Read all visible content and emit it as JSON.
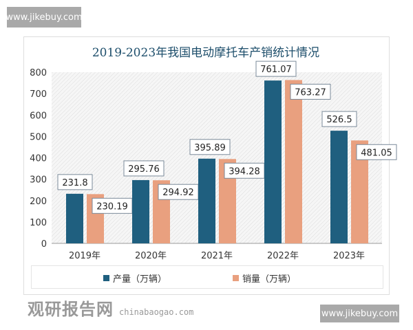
{
  "watermark_top": "www.jikebuy.com",
  "watermark_bottom": "www.jikebuy.com",
  "logo": {
    "name": "观研报告网",
    "url": "chinabaogao.com"
  },
  "chart_data": {
    "type": "bar",
    "title": "2019-2023年我国电动摩托车产销统计情况",
    "categories": [
      "2019年",
      "2020年",
      "2021年",
      "2022年",
      "2023年"
    ],
    "series": [
      {
        "name": "产量（万辆）",
        "color": "#1f5f7f",
        "values": [
          231.8,
          295.76,
          395.89,
          761.07,
          526.5
        ],
        "labels": [
          "231.8",
          "295.76",
          "395.89",
          "761.07",
          "526.5"
        ]
      },
      {
        "name": "销量（万辆）",
        "color": "#e9a07f",
        "values": [
          230.19,
          294.92,
          394.28,
          763.27,
          481.05
        ],
        "labels": [
          "230.19",
          "294.92",
          "394.28",
          "763.27",
          "481.05"
        ]
      }
    ],
    "ylim": [
      0,
      800
    ],
    "yticks": [
      "0",
      "100",
      "200",
      "300",
      "400",
      "500",
      "600",
      "700",
      "800"
    ],
    "grid": false,
    "legend": "bottom"
  }
}
